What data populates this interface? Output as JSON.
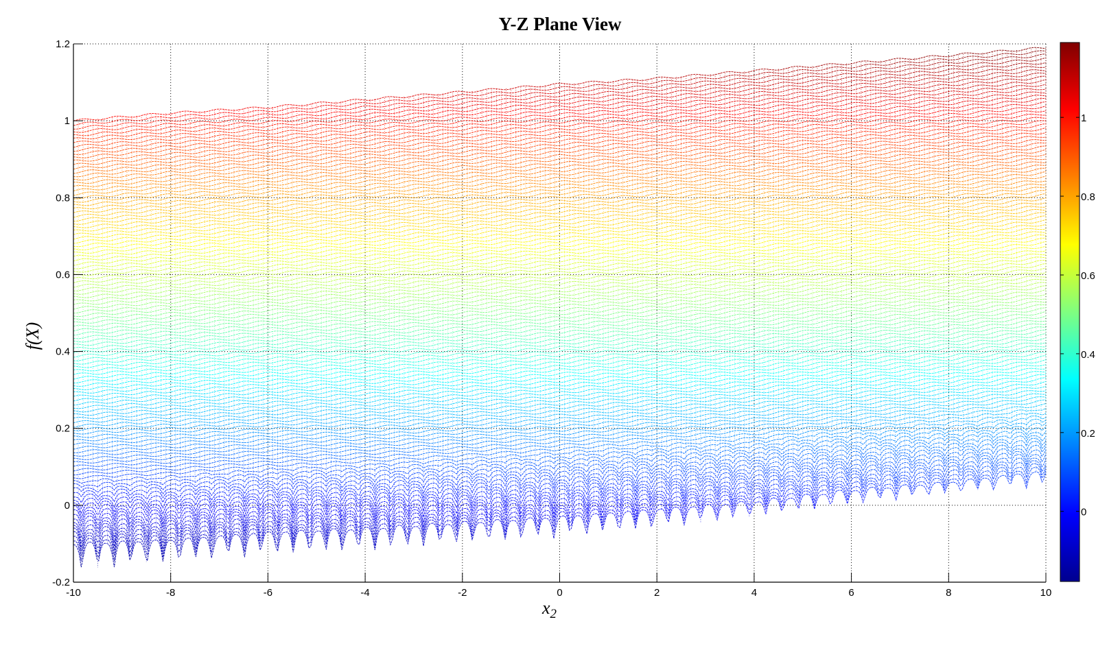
{
  "chart_data": {
    "type": "surface",
    "title": "Y-Z Plane View",
    "xlabel": "x",
    "xlabel_subscript": "2",
    "ylabel": "f(X)",
    "xlim": [
      -10,
      10
    ],
    "ylim": [
      -0.2,
      1.2
    ],
    "xticks": [
      "-10",
      "-8",
      "-6",
      "-4",
      "-2",
      "0",
      "2",
      "4",
      "6",
      "8",
      "10"
    ],
    "yticks": [
      "-0.2",
      "0",
      "0.2",
      "0.4",
      "0.6",
      "0.8",
      "1",
      "1.2"
    ],
    "grid": true,
    "colormap": "jet",
    "clim": [
      -0.178,
      1.19
    ],
    "colorbar": {
      "position": "right",
      "ticks": [
        "0",
        "0.2",
        "0.4",
        "0.6",
        "0.8",
        "1"
      ]
    },
    "envelope_x": [
      -10,
      -8,
      -6,
      -4,
      -2,
      0,
      2,
      4,
      6,
      8,
      10
    ],
    "upper_envelope": [
      1.0,
      1.02,
      1.035,
      1.055,
      1.075,
      1.095,
      1.11,
      1.13,
      1.15,
      1.17,
      1.19
    ],
    "lower_envelope_base": [
      -0.1,
      -0.09,
      -0.07,
      -0.06,
      -0.045,
      -0.03,
      -0.01,
      0.01,
      0.04,
      0.06,
      0.09
    ],
    "lower_envelope_spike_tips": [
      -0.17,
      -0.15,
      -0.13,
      -0.12,
      -0.1,
      -0.085,
      -0.06,
      -0.03,
      0.0,
      0.03,
      0.05
    ]
  }
}
